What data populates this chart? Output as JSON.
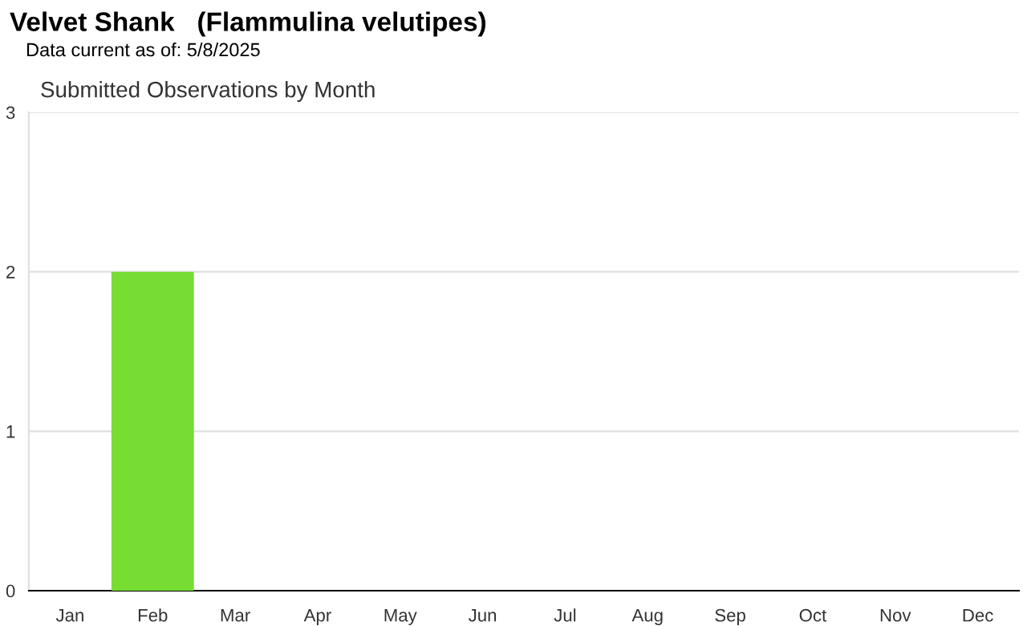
{
  "chart_data": {
    "type": "bar",
    "title": "Velvet Shank   (Flammulina velutipes)",
    "subtitle": "Data current as of: 5/8/2025",
    "annotations": [
      "Submitted Observations by Month"
    ],
    "categories": [
      "Jan",
      "Feb",
      "Mar",
      "Apr",
      "May",
      "Jun",
      "Jul",
      "Aug",
      "Sep",
      "Oct",
      "Nov",
      "Dec"
    ],
    "values": [
      0,
      2,
      0,
      0,
      0,
      0,
      0,
      0,
      0,
      0,
      0,
      0
    ],
    "color": "#77dd33",
    "ylim": [
      0,
      3
    ],
    "yticks": [
      0,
      1,
      2,
      3
    ],
    "grid": "y",
    "legend": false
  }
}
